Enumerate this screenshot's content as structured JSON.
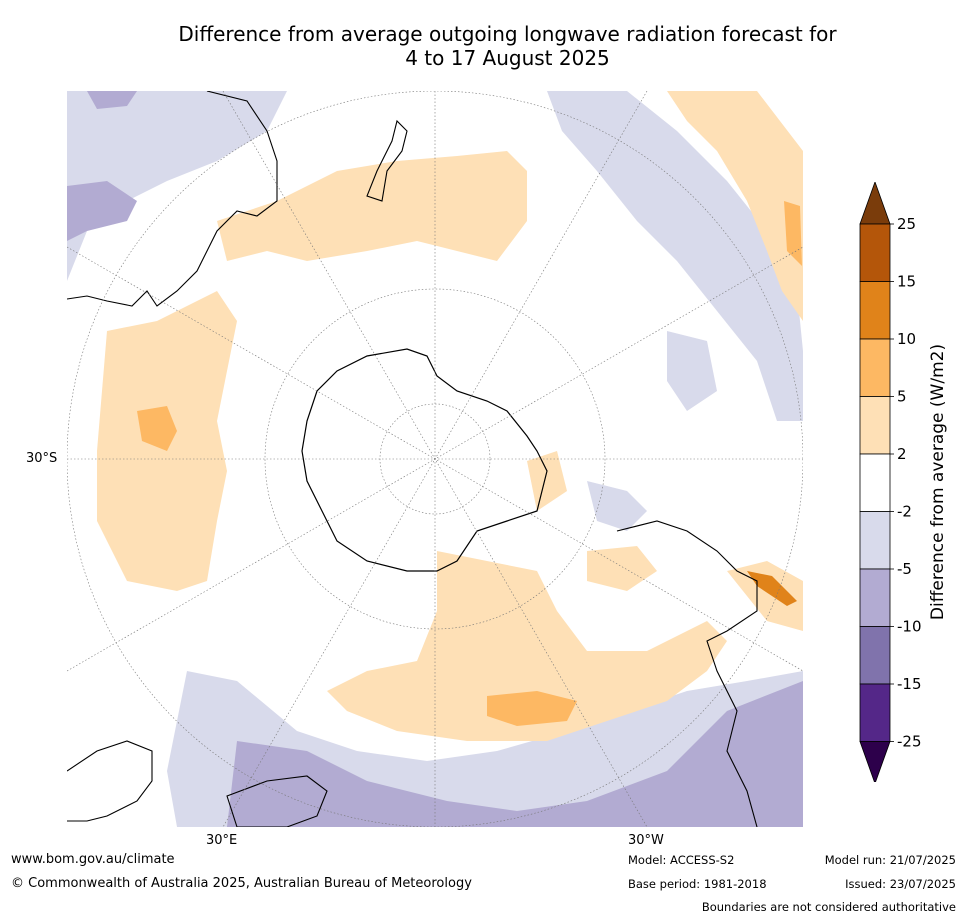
{
  "title": {
    "line1": "Difference from average outgoing longwave radiation forecast for",
    "line2": "4 to 17 August 2025"
  },
  "axis_labels": {
    "lat": "30°S",
    "lon_left": "30°E",
    "lon_right": "30°W"
  },
  "colorbar": {
    "title": "Difference from average (W/m2)",
    "ticks": [
      "25",
      "15",
      "10",
      "5",
      "2",
      "-2",
      "-5",
      "-10",
      "-15",
      "-25"
    ],
    "colors": [
      "#7a3c0b",
      "#b4560a",
      "#e0831a",
      "#fdb863",
      "#fee0b6",
      "#ffffff",
      "#d8daeb",
      "#b2abd2",
      "#8073ac",
      "#542788",
      "#2d004b"
    ]
  },
  "footer": {
    "website": "www.bom.gov.au/climate",
    "copyright": "© Commonwealth of Australia 2025, Australian Bureau of Meteorology",
    "model": "Model: ACCESS-S2",
    "base_period": "Base period: 1981-2018",
    "model_run": "Model run: 21/07/2025",
    "issued": "Issued: 23/07/2025",
    "disclaimer": "Boundaries are not considered authoritative"
  }
}
